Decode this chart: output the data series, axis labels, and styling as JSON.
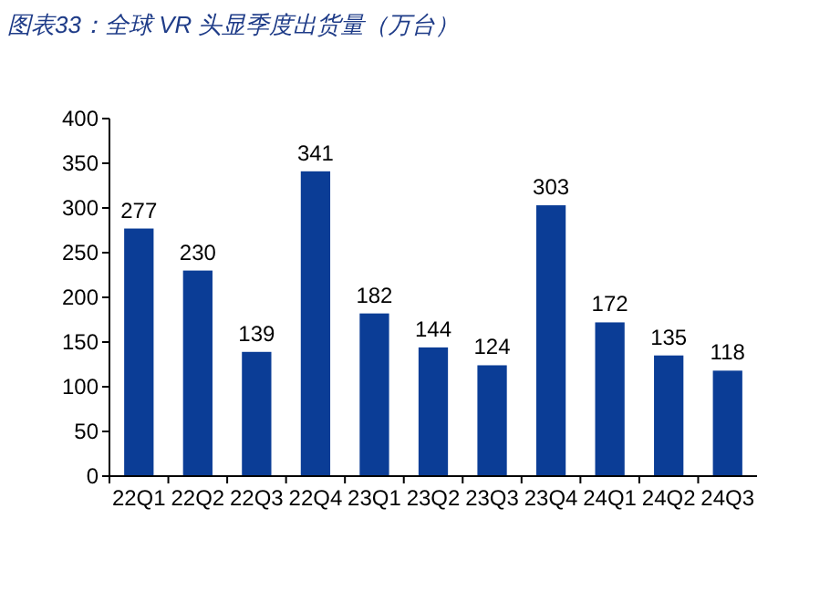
{
  "chart_data": {
    "type": "bar",
    "title": "图表33：全球 VR 头显季度出货量（万台）",
    "categories": [
      "22Q1",
      "22Q2",
      "22Q3",
      "22Q4",
      "23Q1",
      "23Q2",
      "23Q3",
      "23Q4",
      "24Q1",
      "24Q2",
      "24Q3"
    ],
    "values": [
      277,
      230,
      139,
      341,
      182,
      144,
      124,
      303,
      172,
      135,
      118
    ],
    "color": "#0b3d96",
    "ylim": [
      0,
      400
    ],
    "yticks": [
      0,
      50,
      100,
      150,
      200,
      250,
      300,
      350,
      400
    ],
    "data_labels": true,
    "grid": false
  }
}
